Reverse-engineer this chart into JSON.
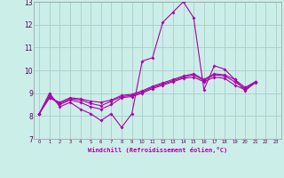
{
  "bg_color": "#cceee8",
  "grid_color": "#aacccc",
  "line_color": "#aa00aa",
  "xlabel": "Windchill (Refroidissement éolien,°C)",
  "xlim": [
    -0.5,
    23.5
  ],
  "ylim": [
    7,
    13
  ],
  "yticks": [
    7,
    8,
    9,
    10,
    11,
    12,
    13
  ],
  "xticks": [
    0,
    1,
    2,
    3,
    4,
    5,
    6,
    7,
    8,
    9,
    10,
    11,
    12,
    13,
    14,
    15,
    16,
    17,
    18,
    19,
    20,
    21,
    22,
    23
  ],
  "line1": [
    8.1,
    9.0,
    8.4,
    8.6,
    8.3,
    8.1,
    7.8,
    8.1,
    7.5,
    8.1,
    10.4,
    10.55,
    12.1,
    12.55,
    13.0,
    12.3,
    9.15,
    10.2,
    10.05,
    9.6,
    9.1,
    9.5,
    null,
    null
  ],
  "line2": [
    8.1,
    8.9,
    8.5,
    8.7,
    8.6,
    8.4,
    8.3,
    8.5,
    8.8,
    8.85,
    9.0,
    9.2,
    9.35,
    9.5,
    9.65,
    9.7,
    9.5,
    9.7,
    9.65,
    9.35,
    9.15,
    9.45,
    null,
    null
  ],
  "line3": [
    8.1,
    8.8,
    8.55,
    8.75,
    8.7,
    8.55,
    8.45,
    8.65,
    8.85,
    8.9,
    9.05,
    9.25,
    9.4,
    9.55,
    9.7,
    9.8,
    9.55,
    9.8,
    9.75,
    9.5,
    9.2,
    9.5,
    null,
    null
  ],
  "line4": [
    8.1,
    8.8,
    8.6,
    8.8,
    8.75,
    8.65,
    8.6,
    8.7,
    8.9,
    8.95,
    9.1,
    9.3,
    9.45,
    9.6,
    9.75,
    9.85,
    9.6,
    9.85,
    9.8,
    9.6,
    9.25,
    9.5,
    null,
    null
  ]
}
